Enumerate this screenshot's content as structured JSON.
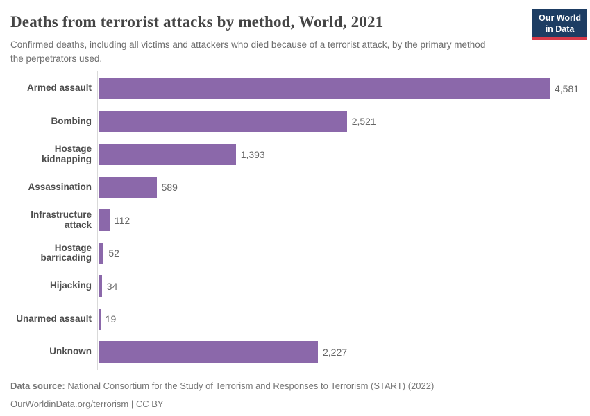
{
  "header": {
    "title": "Deaths from terrorist attacks by method, World, 2021",
    "subtitle": "Confirmed deaths, including all victims and attackers who died because of a terrorist attack, by the primary method the perpetrators used.",
    "logo_line1": "Our World",
    "logo_line2": "in Data"
  },
  "chart_data": {
    "type": "bar",
    "orientation": "horizontal",
    "title": "Deaths from terrorist attacks by method, World, 2021",
    "categories": [
      "Armed assault",
      "Bombing",
      "Hostage kidnapping",
      "Assassination",
      "Infrastructure attack",
      "Hostage barricading",
      "Hijacking",
      "Unarmed assault",
      "Unknown"
    ],
    "values": [
      4581,
      2521,
      1393,
      589,
      112,
      52,
      34,
      19,
      2227
    ],
    "value_labels": [
      "4,581",
      "2,521",
      "1,393",
      "589",
      "112",
      "52",
      "34",
      "19",
      "2,227"
    ],
    "xlabel": "",
    "ylabel": "",
    "xlim": [
      0,
      4581
    ],
    "grid": false,
    "legend": "none",
    "bar_color": "#8b68aa"
  },
  "footer": {
    "source_label": "Data source:",
    "source_text": " National Consortium for the Study of Terrorism and Responses to Terrorism (START) (2022)",
    "attribution": "OurWorldinData.org/terrorism | CC BY"
  },
  "colors": {
    "bar": "#8b68aa",
    "axis_line": "#d9d9d9",
    "logo_bg": "#1d3d63",
    "logo_accent": "#d73a49",
    "title_text": "#454545",
    "muted_text": "#6e6e6e"
  }
}
